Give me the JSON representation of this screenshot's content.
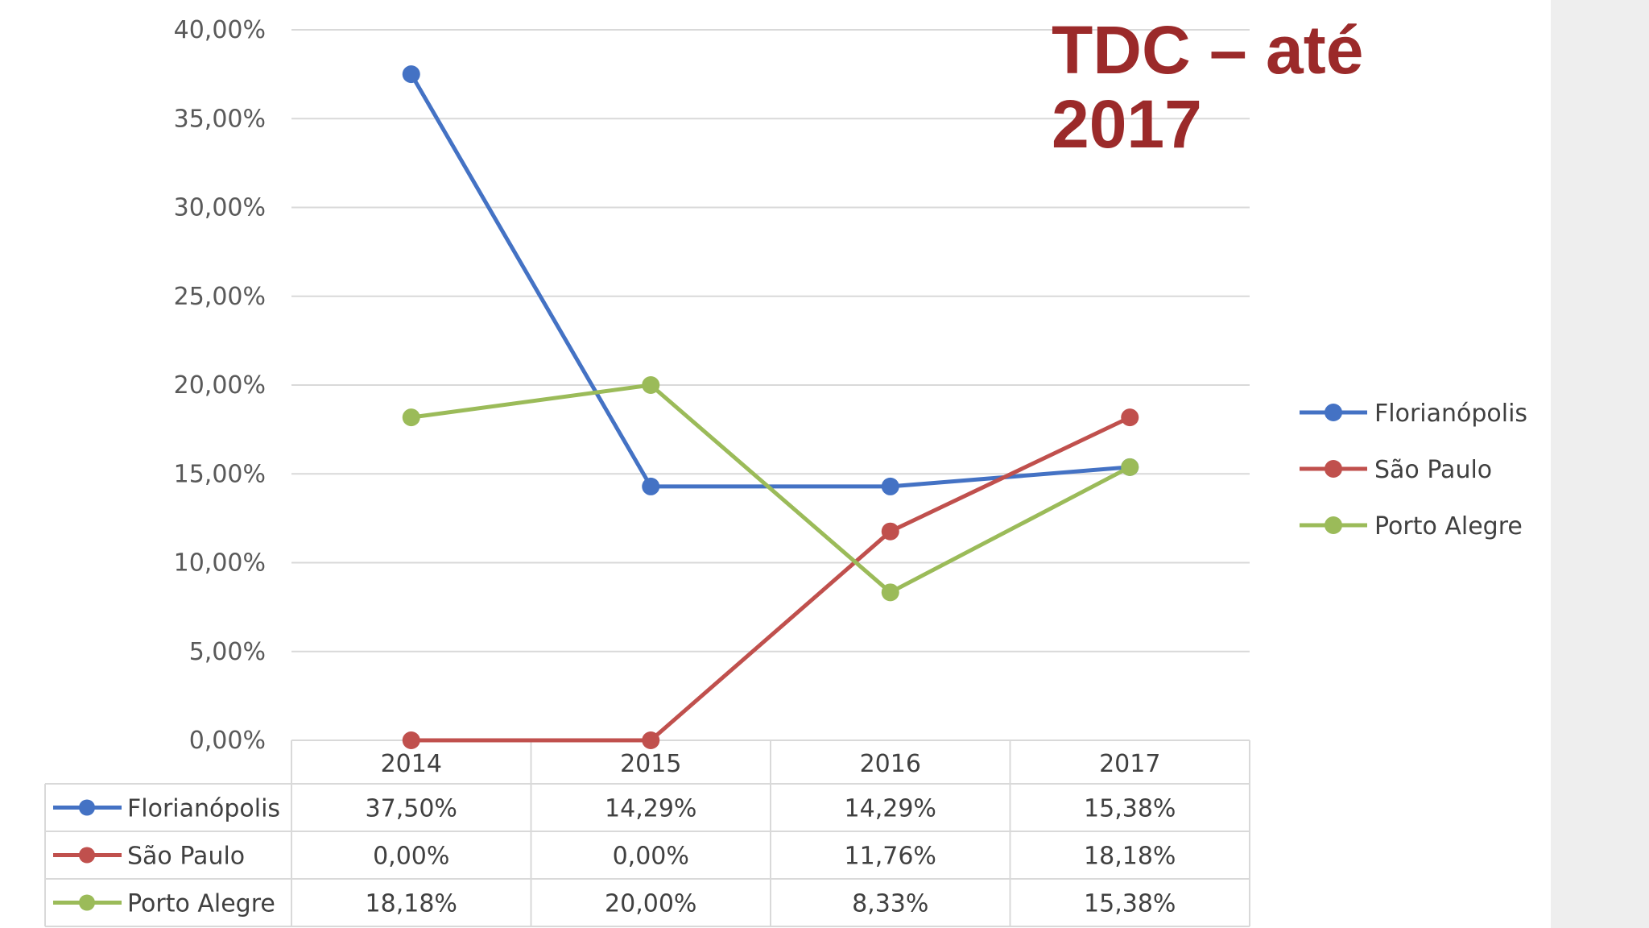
{
  "title": "TDC – até\n2017",
  "chart_data": {
    "type": "line",
    "categories": [
      "2014",
      "2015",
      "2016",
      "2017"
    ],
    "y_ticks": [
      "0,00%",
      "5,00%",
      "10,00%",
      "15,00%",
      "20,00%",
      "25,00%",
      "30,00%",
      "35,00%",
      "40,00%"
    ],
    "ylim": [
      0,
      40
    ],
    "grid": true,
    "legend_position": "right",
    "data_table": true,
    "series": [
      {
        "name": "Florianópolis",
        "color": "#4472c4",
        "values": [
          37.5,
          14.29,
          14.29,
          15.38
        ],
        "labels": [
          "37,50%",
          "14,29%",
          "14,29%",
          "15,38%"
        ]
      },
      {
        "name": "São Paulo",
        "color": "#c0504d",
        "values": [
          0.0,
          0.0,
          11.76,
          18.18
        ],
        "labels": [
          "0,00%",
          "0,00%",
          "11,76%",
          "18,18%"
        ]
      },
      {
        "name": "Porto Alegre",
        "color": "#9bbb59",
        "values": [
          18.18,
          20.0,
          8.33,
          15.38
        ],
        "labels": [
          "18,18%",
          "20,00%",
          "8,33%",
          "15,38%"
        ]
      }
    ]
  }
}
